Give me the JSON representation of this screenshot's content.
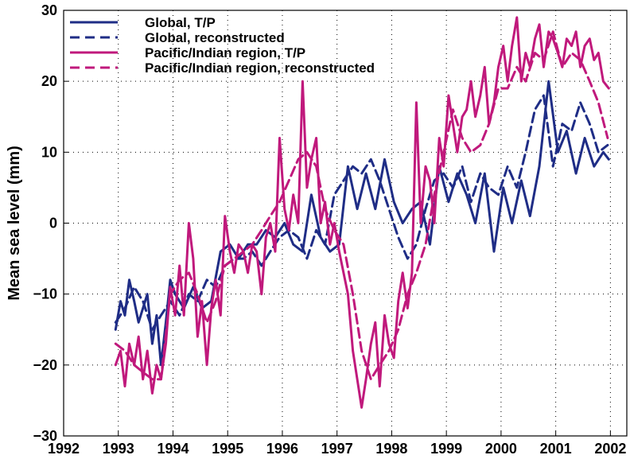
{
  "chart_data": {
    "type": "line",
    "title": "",
    "xlabel": "",
    "ylabel": "Mean sea level (mm)",
    "xlim": [
      1992,
      2002.3
    ],
    "ylim": [
      -30,
      30
    ],
    "xticks": [
      "1992",
      "1993",
      "1994",
      "1995",
      "1996",
      "1997",
      "1998",
      "1999",
      "2000",
      "2001",
      "2002"
    ],
    "yticks": [
      "30",
      "20",
      "10",
      "0",
      "−10",
      "−20",
      "−30"
    ],
    "grid": true,
    "legend_position": "top-left",
    "series": [
      {
        "name": "Global, T/P",
        "color": "#1f2d86",
        "dash": "solid",
        "x": [
          1992.95,
          1993.04,
          1993.12,
          1993.2,
          1993.29,
          1993.37,
          1993.45,
          1993.53,
          1993.62,
          1993.7,
          1993.78,
          1993.87,
          1993.95,
          1994.04,
          1994.2,
          1994.37,
          1994.53,
          1994.7,
          1994.87,
          1995.04,
          1995.2,
          1995.37,
          1995.53,
          1995.7,
          1995.87,
          1996.04,
          1996.2,
          1996.37,
          1996.53,
          1996.7,
          1996.87,
          1997.04,
          1997.2,
          1997.37,
          1997.53,
          1997.7,
          1997.87,
          1998.04,
          1998.2,
          1998.37,
          1998.53,
          1998.7,
          1998.87,
          1999.04,
          1999.2,
          1999.37,
          1999.53,
          1999.7,
          1999.87,
          2000.04,
          2000.2,
          2000.37,
          2000.53,
          2000.7,
          2000.87,
          2001.04,
          2001.2,
          2001.37,
          2001.53,
          2001.7,
          2001.87,
          2001.97
        ],
        "y": [
          -15,
          -11,
          -13,
          -8,
          -11,
          -14,
          -12,
          -10,
          -17,
          -13,
          -20,
          -14,
          -8,
          -10,
          -12,
          -9,
          -12,
          -11,
          -4,
          -3,
          -5,
          -3,
          -3,
          -1,
          -2,
          0,
          -3,
          -4,
          4,
          -2,
          -4,
          -3,
          8,
          2,
          7,
          2,
          9,
          3,
          0,
          2,
          3,
          -3,
          8,
          3,
          7,
          4,
          0,
          7,
          -4,
          5,
          0,
          6,
          1,
          8,
          20,
          10,
          13,
          7,
          12,
          8,
          10,
          9
        ]
      },
      {
        "name": "Global, reconstructed",
        "color": "#1f2d86",
        "dash": "dashed",
        "x": [
          1992.95,
          1993.12,
          1993.29,
          1993.45,
          1993.62,
          1993.78,
          1993.95,
          1994.12,
          1994.29,
          1994.45,
          1994.62,
          1994.78,
          1994.95,
          1995.12,
          1995.29,
          1995.45,
          1995.62,
          1995.78,
          1995.95,
          1996.12,
          1996.29,
          1996.45,
          1996.62,
          1996.78,
          1996.95,
          1997.12,
          1997.29,
          1997.45,
          1997.62,
          1997.78,
          1997.95,
          1998.12,
          1998.29,
          1998.45,
          1998.62,
          1998.78,
          1998.95,
          1999.12,
          1999.29,
          1999.45,
          1999.62,
          1999.78,
          1999.95,
          2000.12,
          2000.29,
          2000.45,
          2000.62,
          2000.78,
          2000.95,
          2001.12,
          2001.29,
          2001.45,
          2001.62,
          2001.78,
          2001.95
        ],
        "y": [
          -14,
          -12,
          -9,
          -11,
          -15,
          -13,
          -11,
          -13,
          -10,
          -11,
          -8,
          -9,
          -6,
          -5,
          -5,
          -4,
          -6,
          -4,
          -2,
          -1,
          -2,
          -5,
          -1,
          -3,
          4,
          6,
          8,
          7,
          9,
          6,
          2,
          -2,
          -5,
          -3,
          2,
          6,
          7,
          5,
          8,
          3,
          7,
          5,
          4,
          8,
          5,
          10,
          16,
          18,
          8,
          14,
          13,
          17,
          14,
          10,
          11
        ]
      },
      {
        "name": "Pacific/Indian region, T/P",
        "color": "#c0197c",
        "dash": "solid",
        "x": [
          1992.95,
          1993.04,
          1993.12,
          1993.2,
          1993.29,
          1993.37,
          1993.45,
          1993.53,
          1993.62,
          1993.7,
          1993.78,
          1993.87,
          1993.95,
          1994.04,
          1994.12,
          1994.2,
          1994.29,
          1994.37,
          1994.45,
          1994.53,
          1994.62,
          1994.7,
          1994.78,
          1994.87,
          1994.95,
          1995.04,
          1995.12,
          1995.2,
          1995.29,
          1995.37,
          1995.45,
          1995.53,
          1995.62,
          1995.7,
          1995.78,
          1995.87,
          1995.95,
          1996.04,
          1996.12,
          1996.2,
          1996.29,
          1996.37,
          1996.45,
          1996.53,
          1996.62,
          1996.7,
          1996.78,
          1996.87,
          1996.95,
          1997.04,
          1997.12,
          1997.2,
          1997.29,
          1997.37,
          1997.45,
          1997.53,
          1997.62,
          1997.7,
          1997.78,
          1997.87,
          1997.95,
          1998.04,
          1998.12,
          1998.2,
          1998.29,
          1998.37,
          1998.45,
          1998.53,
          1998.62,
          1998.7,
          1998.78,
          1998.87,
          1998.95,
          1999.04,
          1999.12,
          1999.2,
          1999.29,
          1999.37,
          1999.45,
          1999.53,
          1999.62,
          1999.7,
          1999.78,
          1999.87,
          1999.95,
          2000.04,
          2000.12,
          2000.2,
          2000.29,
          2000.37,
          2000.45,
          2000.53,
          2000.62,
          2000.7,
          2000.78,
          2000.87,
          2000.95,
          2001.04,
          2001.12,
          2001.2,
          2001.29,
          2001.37,
          2001.45,
          2001.53,
          2001.62,
          2001.7,
          2001.78,
          2001.87,
          2001.97
        ],
        "y": [
          -20,
          -18,
          -23,
          -17,
          -20,
          -16,
          -22,
          -18,
          -24,
          -20,
          -22,
          -17,
          -9,
          -13,
          -6,
          -13,
          0,
          -5,
          -16,
          -11,
          -20,
          -12,
          -8,
          -13,
          1,
          -4,
          -7,
          -3,
          -4,
          -7,
          -3,
          -4,
          -10,
          -2,
          0,
          -4,
          12,
          2,
          -1,
          4,
          0,
          20,
          5,
          9,
          12,
          0,
          3,
          -3,
          0,
          -4,
          -7,
          -10,
          -18,
          -22,
          -26,
          -22,
          -17,
          -14,
          -23,
          -13,
          -17,
          -19,
          -11,
          -7,
          -12,
          -7,
          17,
          0,
          8,
          6,
          0,
          12,
          8,
          18,
          14,
          10,
          15,
          16,
          20,
          15,
          18,
          22,
          14,
          17,
          22,
          25,
          20,
          25,
          29,
          20,
          24,
          22,
          26,
          28,
          22,
          27,
          26,
          24,
          22,
          26,
          25,
          27,
          22,
          25,
          26,
          23,
          24,
          20,
          19
        ]
      },
      {
        "name": "Pacific/Indian region, reconstructed",
        "color": "#c0197c",
        "dash": "dashed",
        "x": [
          1992.95,
          1993.12,
          1993.29,
          1993.45,
          1993.62,
          1993.78,
          1993.95,
          1994.12,
          1994.29,
          1994.45,
          1994.62,
          1994.78,
          1994.95,
          1995.12,
          1995.29,
          1995.45,
          1995.62,
          1995.78,
          1995.95,
          1996.12,
          1996.29,
          1996.45,
          1996.62,
          1996.78,
          1996.95,
          1997.12,
          1997.29,
          1997.45,
          1997.62,
          1997.78,
          1997.95,
          1998.12,
          1998.29,
          1998.45,
          1998.62,
          1998.78,
          1998.95,
          1999.12,
          1999.29,
          1999.45,
          1999.62,
          1999.78,
          1999.95,
          2000.12,
          2000.29,
          2000.45,
          2000.62,
          2000.78,
          2000.95,
          2001.12,
          2001.29,
          2001.45,
          2001.62,
          2001.78,
          2001.95
        ],
        "y": [
          -17,
          -18,
          -20,
          -21,
          -22,
          -22,
          -10,
          -8,
          -7,
          -10,
          -14,
          -11,
          -6,
          -5,
          -4,
          -3,
          -1,
          1,
          3,
          6,
          9,
          10,
          8,
          2,
          -1,
          -3,
          -10,
          -18,
          -22,
          -20,
          -18,
          -15,
          -10,
          -7,
          -3,
          4,
          10,
          16,
          12,
          10,
          11,
          14,
          19,
          19,
          22,
          20,
          24,
          23,
          27,
          22,
          24,
          23,
          20,
          17,
          12
        ]
      }
    ]
  }
}
